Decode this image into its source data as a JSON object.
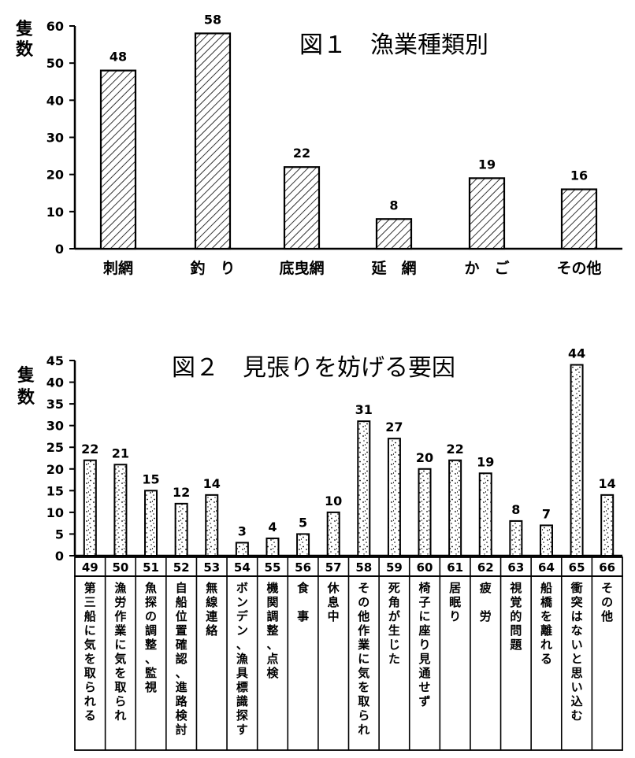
{
  "chart_data": [
    {
      "type": "bar",
      "title": "図１　漁業種類別",
      "ylabel": "隻数",
      "ylim": [
        0,
        60
      ],
      "yticks": [
        0,
        10,
        20,
        30,
        40,
        50,
        60
      ],
      "categories": [
        "刺網",
        "釣　り",
        "底曳網",
        "延　網",
        "か　ご",
        "その他"
      ],
      "values": [
        48,
        58,
        22,
        8,
        19,
        16
      ],
      "grid": false,
      "bar_fill": "diagonal-hatch"
    },
    {
      "type": "bar",
      "title": "図２　見張りを妨げる要因",
      "ylabel": "隻数",
      "ylim": [
        0,
        45
      ],
      "yticks": [
        0,
        5,
        10,
        15,
        20,
        25,
        30,
        35,
        40,
        45
      ],
      "category_numbers": [
        "49",
        "50",
        "51",
        "52",
        "53",
        "54",
        "55",
        "56",
        "57",
        "58",
        "59",
        "60",
        "61",
        "62",
        "63",
        "64",
        "65",
        "66"
      ],
      "categories": [
        "第三船に気を取られる",
        "漁労作業に気を取られ",
        "魚探の調整、監視",
        "自船位置確認、進路検討",
        "無線連絡",
        "ボンデン、漁具標識探す",
        "機関調整、点検",
        "食　事",
        "休息中",
        "その他作業に気を取られ",
        "死角が生じた",
        "椅子に座り見通せず",
        "居眠り",
        "疲　労",
        "視覚的問題",
        "船橋を離れる",
        "衝突はないと思い込む",
        "その他"
      ],
      "values": [
        22,
        21,
        15,
        12,
        14,
        3,
        4,
        5,
        10,
        31,
        27,
        20,
        22,
        19,
        8,
        7,
        44,
        14
      ],
      "grid": false,
      "bar_fill": "speckled"
    }
  ]
}
